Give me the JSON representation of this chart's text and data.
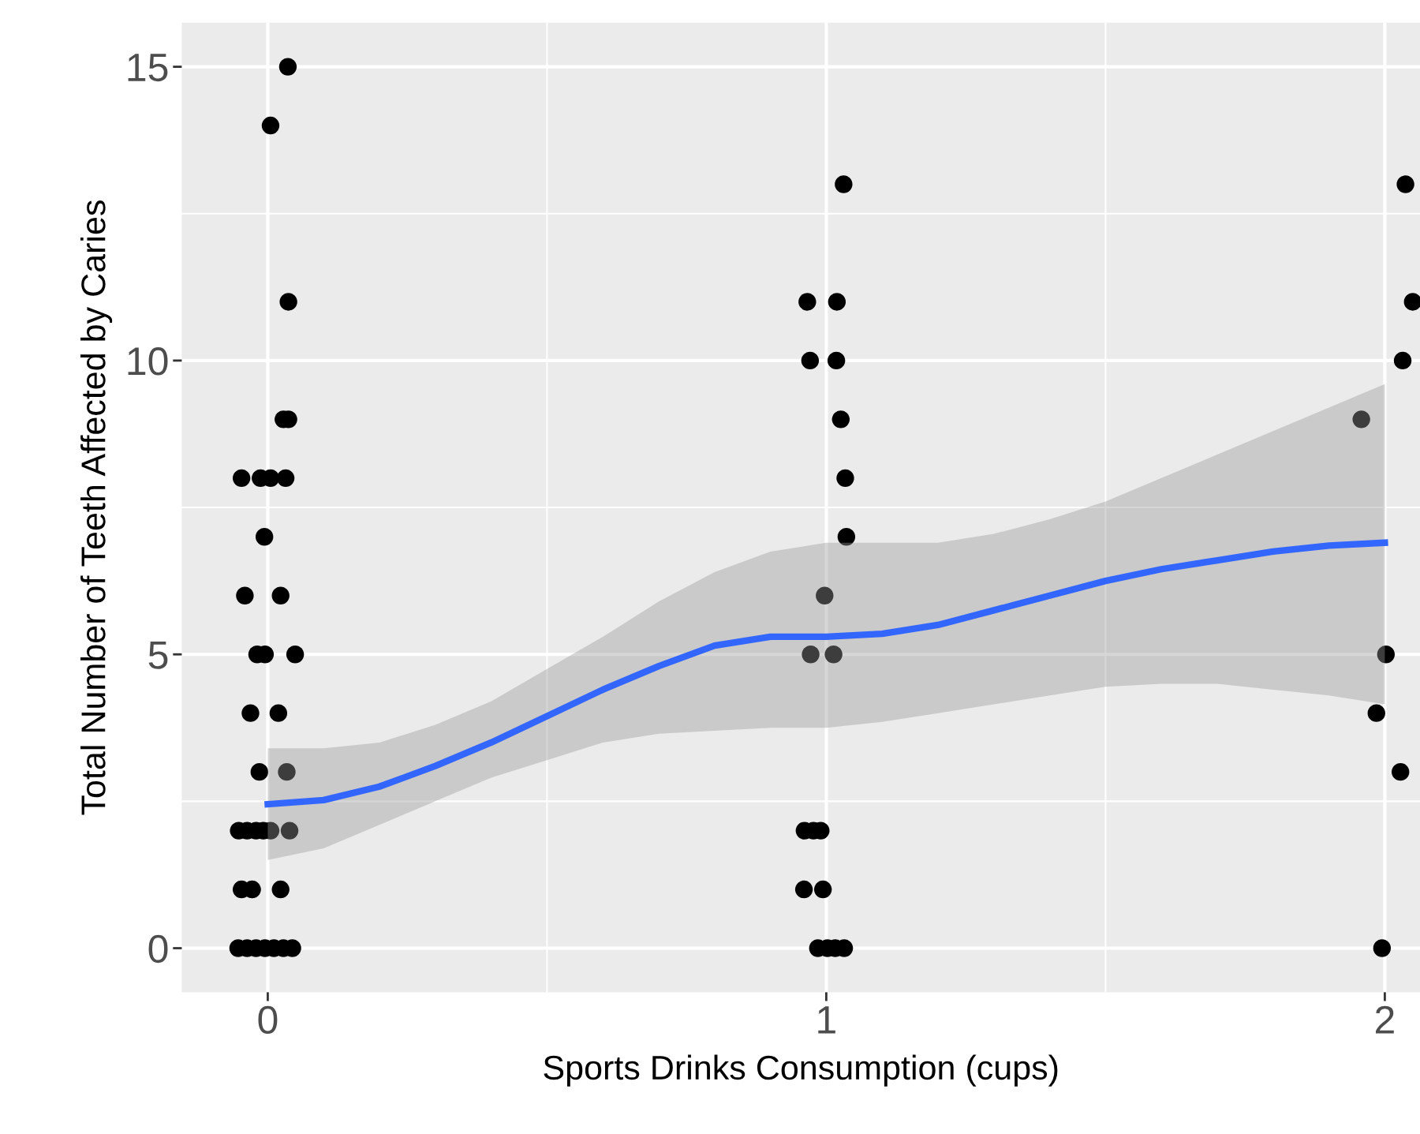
{
  "chart_data": {
    "type": "scatter",
    "xlabel": "Sports Drinks Consumption (cups)",
    "ylabel": "Total Number of Teeth Affected by Caries",
    "xlim": [
      -0.154,
      2.063
    ],
    "ylim": [
      -0.75,
      15.75
    ],
    "xticks": [
      0,
      1,
      2
    ],
    "yticks": [
      0,
      5,
      10,
      15
    ],
    "grid": true,
    "marker": "circle",
    "series": [
      {
        "color": "#000000",
        "x": [
          0.036,
          0.005,
          0.037,
          0.028,
          0.037,
          -0.047,
          -0.013,
          0.005,
          0.032,
          -0.006,
          -0.041,
          0.023,
          -0.019,
          -0.005,
          0.049,
          -0.031,
          0.019,
          -0.015,
          0.034,
          -0.052,
          -0.037,
          -0.021,
          -0.008,
          0.005,
          0.039,
          -0.047,
          -0.028,
          0.023,
          -0.053,
          -0.037,
          -0.021,
          -0.005,
          0.011,
          0.028,
          0.044,
          1.031,
          0.966,
          1.019,
          0.971,
          1.018,
          1.026,
          1.034,
          1.036,
          0.997,
          0.972,
          1.013,
          0.961,
          0.977,
          0.99,
          0.96,
          0.994,
          0.985,
          1.002,
          1.016,
          1.032,
          2.037,
          2.05,
          2.032,
          1.958,
          2.002,
          1.985,
          2.028,
          1.995
        ],
        "values": [
          15,
          14,
          11,
          9,
          9,
          8,
          8,
          8,
          8,
          7,
          6,
          6,
          5,
          5,
          5,
          4,
          4,
          3,
          3,
          2,
          2,
          2,
          2,
          2,
          2,
          1,
          1,
          1,
          0,
          0,
          0,
          0,
          0,
          0,
          0,
          13,
          11,
          11,
          10,
          10,
          9,
          8,
          7,
          6,
          5,
          5,
          2,
          2,
          2,
          1,
          1,
          0,
          0,
          0,
          0,
          13,
          11,
          10,
          9,
          5,
          4,
          3,
          0
        ]
      },
      {
        "type": "line",
        "color": "#3366ff",
        "line_style": "solid",
        "marker": "none",
        "x": [
          0,
          0.1,
          0.2,
          0.3,
          0.4,
          0.5,
          0.6,
          0.7,
          0.8,
          0.9,
          1.0,
          1.1,
          1.2,
          1.3,
          1.4,
          1.5,
          1.6,
          1.7,
          1.8,
          1.9,
          2.0
        ],
        "values": [
          2.45,
          2.52,
          2.75,
          3.1,
          3.5,
          3.95,
          4.4,
          4.8,
          5.15,
          5.3,
          5.3,
          5.35,
          5.5,
          5.75,
          6.0,
          6.25,
          6.45,
          6.6,
          6.75,
          6.85,
          6.9
        ],
        "lower": [
          1.5,
          1.7,
          2.1,
          2.5,
          2.9,
          3.2,
          3.5,
          3.65,
          3.7,
          3.75,
          3.75,
          3.85,
          4.0,
          4.15,
          4.3,
          4.45,
          4.5,
          4.5,
          4.4,
          4.3,
          4.15
        ],
        "upper": [
          3.4,
          3.4,
          3.5,
          3.8,
          4.2,
          4.75,
          5.3,
          5.9,
          6.4,
          6.75,
          6.9,
          6.9,
          6.9,
          7.05,
          7.3,
          7.6,
          8.0,
          8.4,
          8.8,
          9.2,
          9.6
        ]
      }
    ]
  }
}
